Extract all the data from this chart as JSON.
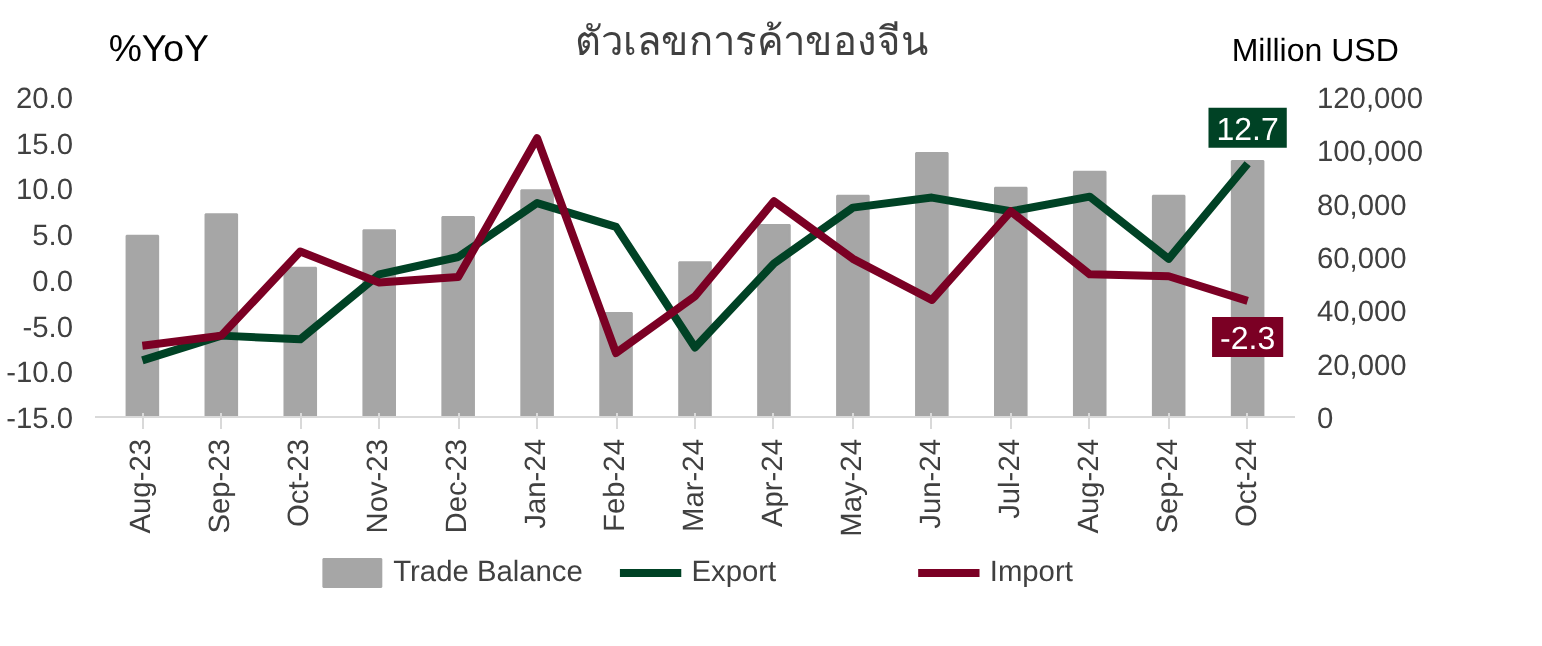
{
  "chart_data": {
    "type": "bar",
    "title": "ตัวเลขการค้าของจีน",
    "ylabel": "%YoY",
    "y2label": "Million USD",
    "categories": [
      "Aug-23",
      "Sep-23",
      "Oct-23",
      "Nov-23",
      "Dec-23",
      "Jan-24",
      "Feb-24",
      "Mar-24",
      "Apr-24",
      "May-24",
      "Jun-24",
      "Jul-24",
      "Aug-24",
      "Sep-24",
      "Oct-24"
    ],
    "series": [
      {
        "name": "Trade Balance",
        "axis": "y2",
        "color": "#a6a6a6",
        "values": [
          68000,
          76000,
          56000,
          70000,
          75000,
          85000,
          39000,
          58000,
          72000,
          83000,
          99000,
          86000,
          92000,
          83000,
          96000
        ]
      },
      {
        "name": "Export",
        "type": "line",
        "color": "#004225",
        "values": [
          -8.8,
          -6.1,
          -6.5,
          0.6,
          2.5,
          8.4,
          5.8,
          -7.4,
          1.8,
          7.9,
          9.0,
          7.5,
          9.1,
          2.3,
          12.7
        ],
        "value_labels": [
          null,
          null,
          null,
          null,
          null,
          null,
          null,
          null,
          null,
          null,
          null,
          null,
          null,
          null,
          "12.7"
        ]
      },
      {
        "name": "Import",
        "type": "line",
        "color": "#7b0024",
        "values": [
          -7.2,
          -6.1,
          3.1,
          -0.3,
          0.3,
          15.5,
          -8.0,
          -1.8,
          8.6,
          2.3,
          -2.2,
          7.5,
          0.6,
          0.4,
          -2.3
        ],
        "value_labels": [
          null,
          null,
          null,
          null,
          null,
          null,
          null,
          null,
          null,
          null,
          null,
          null,
          null,
          null,
          "-2.3"
        ]
      }
    ],
    "ylim": [
      -15,
      20
    ],
    "yticks": [
      {
        "value": -15,
        "label": "-15.0"
      },
      {
        "value": -10,
        "label": "-10.0"
      },
      {
        "value": -5,
        "label": "-5.0"
      },
      {
        "value": 0,
        "label": "0.0"
      },
      {
        "value": 5,
        "label": "5.0"
      },
      {
        "value": 10,
        "label": "10.0"
      },
      {
        "value": 15,
        "label": "15.0"
      },
      {
        "value": 20,
        "label": "20.0"
      }
    ],
    "y2lim": [
      0,
      120000
    ],
    "y2ticks": [
      {
        "value": 0,
        "label": "0"
      },
      {
        "value": 20000,
        "label": "20,000"
      },
      {
        "value": 40000,
        "label": "40,000"
      },
      {
        "value": 60000,
        "label": "60,000"
      },
      {
        "value": 80000,
        "label": "80,000"
      },
      {
        "value": 100000,
        "label": "100,000"
      },
      {
        "value": 120000,
        "label": "120,000"
      }
    ],
    "legend": "bottom"
  }
}
